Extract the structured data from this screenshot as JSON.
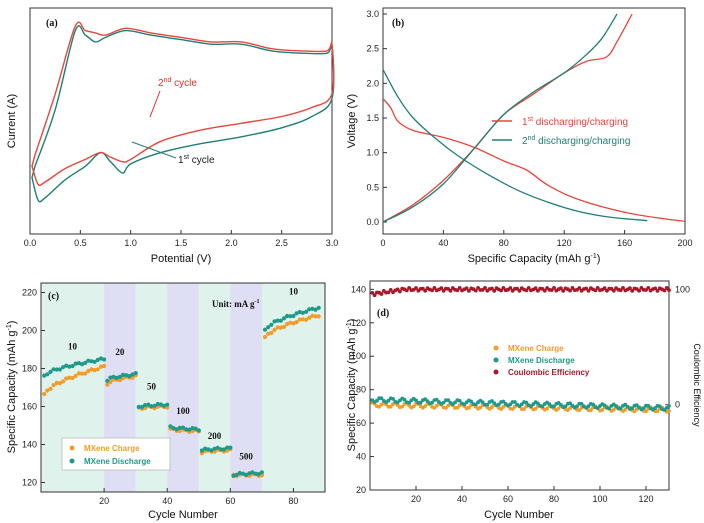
{
  "chart_data": [
    {
      "type": "line",
      "panel": "(a)",
      "xlabel": "Potential (V)",
      "ylabel": "Current (A)",
      "xlim": [
        0,
        3.0
      ],
      "xticks": [
        "0.0",
        "0.5",
        "1.0",
        "1.5",
        "2.0",
        "2.5",
        "3.0"
      ],
      "annotations": [
        {
          "text": "2nd cycle",
          "base": "2",
          "sup": "nd",
          "rest": " cycle",
          "color": "#e03030"
        },
        {
          "text": "1st cycle",
          "base": "1",
          "sup": "st",
          "rest": " cycle",
          "color": "#1a1a1a"
        }
      ],
      "series": [
        {
          "name": "1st cycle",
          "color": "#1f7f73",
          "upper": [
            [
              0.05,
              0.3
            ],
            [
              0.25,
              0.55
            ],
            [
              0.45,
              0.9
            ],
            [
              0.55,
              0.88
            ],
            [
              0.65,
              0.85
            ],
            [
              0.75,
              0.87
            ],
            [
              0.95,
              0.9
            ],
            [
              1.2,
              0.88
            ],
            [
              1.5,
              0.86
            ],
            [
              1.8,
              0.84
            ],
            [
              2.1,
              0.84
            ],
            [
              2.4,
              0.81
            ],
            [
              2.7,
              0.8
            ],
            [
              2.95,
              0.8
            ],
            [
              3.0,
              0.83
            ]
          ],
          "lower": [
            [
              3.0,
              0.6
            ],
            [
              2.8,
              0.52
            ],
            [
              2.5,
              0.47
            ],
            [
              2.1,
              0.43
            ],
            [
              1.7,
              0.4
            ],
            [
              1.3,
              0.36
            ],
            [
              1.0,
              0.31
            ],
            [
              0.92,
              0.27
            ],
            [
              0.8,
              0.32
            ],
            [
              0.7,
              0.36
            ],
            [
              0.55,
              0.3
            ],
            [
              0.35,
              0.24
            ],
            [
              0.15,
              0.16
            ],
            [
              0.08,
              0.15
            ],
            [
              0.02,
              0.25
            ]
          ]
        },
        {
          "name": "2nd cycle",
          "color": "#e8453c",
          "upper": [
            [
              0.05,
              0.35
            ],
            [
              0.25,
              0.62
            ],
            [
              0.45,
              0.92
            ],
            [
              0.55,
              0.9
            ],
            [
              0.65,
              0.89
            ],
            [
              0.75,
              0.88
            ],
            [
              0.95,
              0.91
            ],
            [
              1.2,
              0.89
            ],
            [
              1.5,
              0.87
            ],
            [
              1.8,
              0.85
            ],
            [
              2.1,
              0.85
            ],
            [
              2.4,
              0.82
            ],
            [
              2.7,
              0.81
            ],
            [
              2.95,
              0.81
            ],
            [
              3.0,
              0.84
            ]
          ],
          "lower": [
            [
              3.0,
              0.62
            ],
            [
              2.8,
              0.56
            ],
            [
              2.5,
              0.52
            ],
            [
              2.1,
              0.49
            ],
            [
              1.7,
              0.46
            ],
            [
              1.3,
              0.41
            ],
            [
              1.0,
              0.33
            ],
            [
              0.92,
              0.32
            ],
            [
              0.8,
              0.34
            ],
            [
              0.7,
              0.36
            ],
            [
              0.55,
              0.33
            ],
            [
              0.35,
              0.29
            ],
            [
              0.15,
              0.23
            ],
            [
              0.08,
              0.22
            ],
            [
              0.02,
              0.3
            ]
          ]
        }
      ]
    },
    {
      "type": "line",
      "panel": "(b)",
      "xlabel": "Specific Capacity (mAh g-1)",
      "xlabel_base": "Specific Capacity (mAh g",
      "xlabel_sup": "-1",
      "xlabel_end": ")",
      "ylabel": "Voltage (V)",
      "xlim": [
        0,
        200
      ],
      "ylim": [
        0,
        3.0
      ],
      "xticks": [
        "0",
        "40",
        "80",
        "120",
        "160",
        "200"
      ],
      "yticks": [
        "0.0",
        "0.5",
        "1.0",
        "1.5",
        "2.0",
        "2.5",
        "3.0"
      ],
      "legend": [
        {
          "text": "1st discharging/charging",
          "base": "1",
          "sup": "st",
          "rest": " discharging/charging",
          "color": "#e8453c"
        },
        {
          "text": "2nd discharging/charging",
          "base": "2",
          "sup": "nd",
          "rest": " discharging/charging",
          "color": "#1f7f73"
        }
      ],
      "series": [
        {
          "name": "1st discharging/charging",
          "color": "#e8453c",
          "discharge": [
            [
              0,
              1.78
            ],
            [
              5,
              1.65
            ],
            [
              10,
              1.45
            ],
            [
              20,
              1.32
            ],
            [
              40,
              1.22
            ],
            [
              60,
              1.08
            ],
            [
              80,
              0.88
            ],
            [
              95,
              0.75
            ],
            [
              110,
              0.52
            ],
            [
              130,
              0.32
            ],
            [
              160,
              0.14
            ],
            [
              185,
              0.05
            ],
            [
              200,
              0.01
            ]
          ],
          "charge": [
            [
              0,
              0.0
            ],
            [
              20,
              0.25
            ],
            [
              40,
              0.6
            ],
            [
              60,
              1.05
            ],
            [
              80,
              1.55
            ],
            [
              100,
              1.85
            ],
            [
              120,
              2.15
            ],
            [
              135,
              2.32
            ],
            [
              148,
              2.38
            ],
            [
              155,
              2.6
            ],
            [
              165,
              3.0
            ]
          ]
        },
        {
          "name": "2nd discharging/charging",
          "color": "#1f7f73",
          "discharge": [
            [
              0,
              2.2
            ],
            [
              10,
              1.8
            ],
            [
              20,
              1.5
            ],
            [
              35,
              1.2
            ],
            [
              50,
              0.95
            ],
            [
              70,
              0.68
            ],
            [
              90,
              0.45
            ],
            [
              110,
              0.28
            ],
            [
              130,
              0.15
            ],
            [
              150,
              0.07
            ],
            [
              175,
              0.02
            ]
          ],
          "charge": [
            [
              0,
              0.0
            ],
            [
              20,
              0.22
            ],
            [
              40,
              0.55
            ],
            [
              60,
              1.05
            ],
            [
              80,
              1.55
            ],
            [
              100,
              1.88
            ],
            [
              120,
              2.15
            ],
            [
              135,
              2.42
            ],
            [
              145,
              2.65
            ],
            [
              155,
              3.0
            ]
          ]
        }
      ]
    },
    {
      "type": "scatter",
      "panel": "(c)",
      "xlabel": "Cycle Number",
      "ylabel": "Specific Capacity (mAh g-1)",
      "ylabel_base": "Specific Capacity (mAh g",
      "ylabel_sup": "-1",
      "ylabel_end": ")",
      "xlim": [
        0,
        90
      ],
      "ylim": [
        115,
        225
      ],
      "xticks": [
        "20",
        "40",
        "60",
        "80"
      ],
      "yticks": [
        "120",
        "140",
        "160",
        "180",
        "200",
        "220"
      ],
      "unit_label": "Unit: mA g-1",
      "unit_base": "Unit: mA g",
      "unit_sup": "-1",
      "rate_labels": [
        "10",
        "20",
        "50",
        "100",
        "200",
        "500",
        "10"
      ],
      "legend": [
        "MXene Charge",
        "MXene Discharge"
      ],
      "series": [
        {
          "name": "MXene Charge",
          "color": "#f39c2a",
          "segments": [
            [
              1,
              20,
              166,
              181
            ],
            [
              21,
              30,
              172,
              176
            ],
            [
              31,
              40,
              159,
              160
            ],
            [
              41,
              50,
              148,
              147
            ],
            [
              51,
              60,
              136,
              137
            ],
            [
              61,
              70,
              124,
              124
            ],
            [
              71,
              88,
              196,
              208
            ]
          ]
        },
        {
          "name": "MXene Discharge",
          "color": "#1f9a8a",
          "segments": [
            [
              1,
              20,
              176,
              185
            ],
            [
              21,
              30,
              174,
              177
            ],
            [
              31,
              40,
              160,
              161
            ],
            [
              41,
              50,
              149,
              148
            ],
            [
              51,
              60,
              137,
              138
            ],
            [
              61,
              70,
              124,
              125
            ],
            [
              71,
              88,
              200,
              212
            ]
          ]
        }
      ]
    },
    {
      "type": "scatter",
      "panel": "(d)",
      "xlabel": "Cycle Number",
      "ylabel": "Specific Capacity (mAh g-1)",
      "ylabel_base": "Specific Capacity (mAh g",
      "ylabel_sup": "-1",
      "ylabel_end": ")",
      "y2label": "Coulombic Efficiency",
      "xlim": [
        0,
        130
      ],
      "ylim": [
        20,
        145
      ],
      "xticks": [
        "20",
        "40",
        "60",
        "80",
        "100",
        "120"
      ],
      "yticks": [
        "20",
        "40",
        "60",
        "80",
        "100",
        "120",
        "140"
      ],
      "y2ticks": [
        "0",
        "100"
      ],
      "legend": [
        "MXene Charge",
        "MXene Discharge",
        "Coulombic Efficiency"
      ],
      "series": [
        {
          "name": "MXene Charge",
          "color": "#f39c2a",
          "start": 71,
          "end": 68
        },
        {
          "name": "MXene Discharge",
          "color": "#1f9a8a",
          "start": 74,
          "end": 69
        },
        {
          "name": "Coulombic Efficiency",
          "color": "#a8182a",
          "start": 137,
          "end": 140
        }
      ]
    }
  ]
}
